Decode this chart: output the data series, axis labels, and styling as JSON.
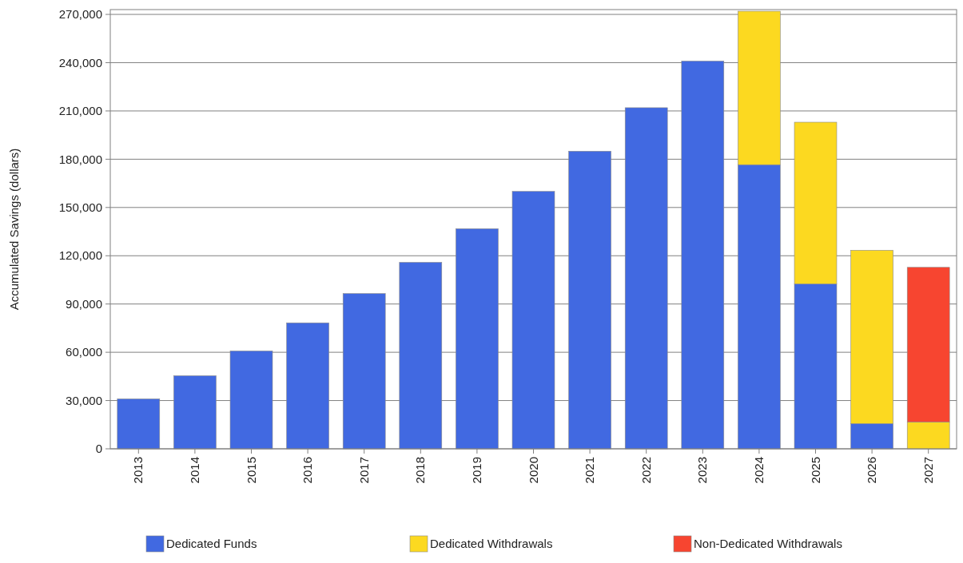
{
  "chart_data": {
    "type": "bar",
    "stacked": true,
    "ylabel": "Accumulated Savings (dollars)",
    "categories": [
      "2013",
      "2014",
      "2015",
      "2016",
      "2017",
      "2018",
      "2019",
      "2020",
      "2021",
      "2022",
      "2023",
      "2024",
      "2025",
      "2026",
      "2027"
    ],
    "series": [
      {
        "name": "Dedicated Funds",
        "color": "#4169e1",
        "values": [
          31000,
          45400,
          60800,
          78300,
          96500,
          115900,
          136800,
          160000,
          185000,
          212000,
          241000,
          176600,
          102500,
          15700,
          0
        ]
      },
      {
        "name": "Dedicated Withdrawals",
        "color": "#fcd920",
        "values": [
          0,
          0,
          0,
          0,
          0,
          0,
          0,
          0,
          0,
          0,
          0,
          95400,
          100500,
          107700,
          16700
        ]
      },
      {
        "name": "Non-Dedicated Withdrawals",
        "color": "#f74530",
        "values": [
          0,
          0,
          0,
          0,
          0,
          0,
          0,
          0,
          0,
          0,
          0,
          0,
          0,
          0,
          96100
        ]
      }
    ],
    "ylim": [
      0,
      273000
    ],
    "yticks": [
      0,
      {
        "value": 30000,
        "label": "30,000"
      },
      {
        "value": 60000,
        "label": "60,000"
      },
      {
        "value": 90000,
        "label": "90,000"
      },
      {
        "value": 120000,
        "label": "120,000"
      },
      {
        "value": 150000,
        "label": "150,000"
      },
      {
        "value": 180000,
        "label": "180,000"
      },
      {
        "value": 210000,
        "label": "210,000"
      },
      {
        "value": 240000,
        "label": "240,000"
      },
      {
        "value": 270000,
        "label": "270,000"
      }
    ],
    "grid": "y",
    "legend": "bottom"
  }
}
